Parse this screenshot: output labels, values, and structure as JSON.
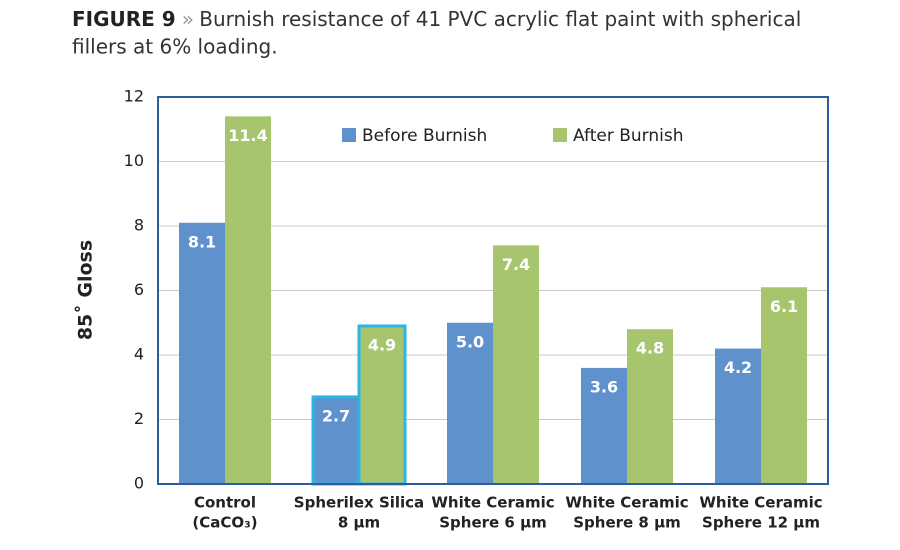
{
  "chart_data": {
    "type": "bar",
    "figure_label": "FIGURE 9",
    "title_separator": "»",
    "title_lines": [
      "Burnish resistance of 41 PVC acrylic flat paint with spherical",
      "fillers at 6% loading."
    ],
    "y_label": "85˚ Gloss",
    "categories": [
      [
        "Control",
        "(CaCO₃)"
      ],
      [
        "Spherilex Silica",
        "8 µm"
      ],
      [
        "White Ceramic",
        "Sphere 6 µm"
      ],
      [
        "White Ceramic",
        "Sphere 8 µm"
      ],
      [
        "White Ceramic",
        "Sphere 12 µm"
      ]
    ],
    "series": [
      {
        "name": "Before Burnish",
        "color": "#5f91cd",
        "values": [
          8.1,
          2.7,
          5.0,
          3.6,
          4.2
        ],
        "value_labels": [
          "8.1",
          "2.7",
          "5.0",
          "3.6",
          "4.2"
        ]
      },
      {
        "name": "After Burnish",
        "color": "#a7c56c",
        "values": [
          11.4,
          4.9,
          7.4,
          4.8,
          6.1
        ],
        "value_labels": [
          "11.4",
          "4.9",
          "7.4",
          "4.8",
          "6.1"
        ]
      }
    ],
    "highlight": {
      "index": 1,
      "color": "#2bb5e8"
    },
    "ylim": [
      0,
      12
    ],
    "yticks": [
      0,
      2,
      4,
      6,
      8,
      10,
      12
    ],
    "grid": true,
    "legend": "top"
  }
}
